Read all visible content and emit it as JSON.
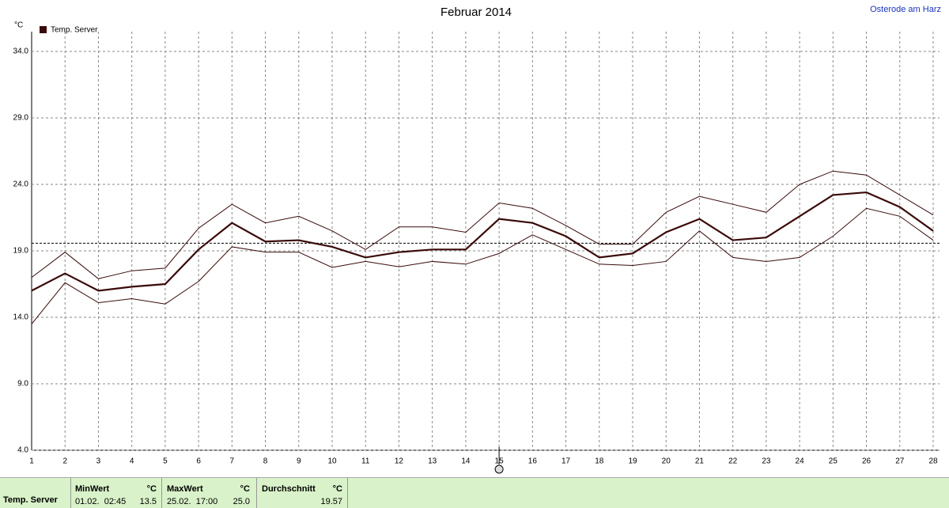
{
  "chart_data": {
    "type": "line",
    "title": "Februar 2014",
    "location": "Osterode am Harz",
    "y_unit": "°C",
    "x": [
      1,
      2,
      3,
      4,
      5,
      6,
      7,
      8,
      9,
      10,
      11,
      12,
      13,
      14,
      15,
      16,
      17,
      18,
      19,
      20,
      21,
      22,
      23,
      24,
      25,
      26,
      27,
      28
    ],
    "xlim": [
      1,
      28
    ],
    "xticks": [
      1,
      2,
      3,
      4,
      5,
      6,
      7,
      8,
      9,
      10,
      11,
      12,
      13,
      14,
      15,
      16,
      17,
      18,
      19,
      20,
      21,
      22,
      23,
      24,
      25,
      26,
      27,
      28
    ],
    "ylim": [
      4,
      34
    ],
    "yticks": [
      {
        "value": 4,
        "label": "4.0"
      },
      {
        "value": 9,
        "label": "9.0"
      },
      {
        "value": 14,
        "label": "14.0"
      },
      {
        "value": 19,
        "label": "19.0"
      },
      {
        "value": 24,
        "label": "24.0"
      },
      {
        "value": 29,
        "label": "29.0"
      },
      {
        "value": 34,
        "label": "34.0"
      }
    ],
    "grid": true,
    "series": [
      {
        "name": "Temp. Server",
        "color": "#3a0a0a",
        "width": 2.2,
        "values": [
          16.0,
          17.3,
          16.0,
          16.3,
          16.5,
          19.1,
          21.1,
          19.7,
          19.8,
          19.3,
          18.5,
          18.9,
          19.1,
          19.1,
          21.4,
          21.1,
          20.1,
          18.5,
          18.8,
          20.4,
          21.4,
          19.8,
          20.0,
          21.6,
          23.2,
          23.4,
          22.3,
          20.5
        ]
      },
      {
        "color": "#3a0a0a",
        "width": 1,
        "values": [
          17.0,
          18.9,
          16.9,
          17.5,
          17.7,
          20.7,
          22.5,
          21.1,
          21.6,
          20.5,
          19.1,
          20.8,
          20.8,
          20.4,
          22.6,
          22.2,
          20.9,
          19.5,
          19.5,
          21.9,
          23.1,
          22.5,
          21.9,
          24.0,
          25.0,
          24.7,
          23.2,
          21.7
        ]
      },
      {
        "color": "#3a0a0a",
        "width": 1,
        "values": [
          13.5,
          16.6,
          15.1,
          15.4,
          15.0,
          16.7,
          19.3,
          18.9,
          18.9,
          17.75,
          18.2,
          17.8,
          18.2,
          18.0,
          18.8,
          20.2,
          19.1,
          18.0,
          17.9,
          18.2,
          20.5,
          18.5,
          18.2,
          18.5,
          20.1,
          22.2,
          21.6,
          19.8
        ]
      }
    ],
    "average": 19.57,
    "summary": {
      "row_label": "Temp. Server",
      "min_header": "MinWert",
      "min_unit": "°C",
      "min_time": "01.02.  02:45",
      "min_value": "13.5",
      "max_header": "MaxWert",
      "max_unit": "°C",
      "max_time": "25.02.  17:00",
      "max_value": "25.0",
      "avg_header": "Durchschnitt",
      "avg_unit": "°C"
    }
  }
}
